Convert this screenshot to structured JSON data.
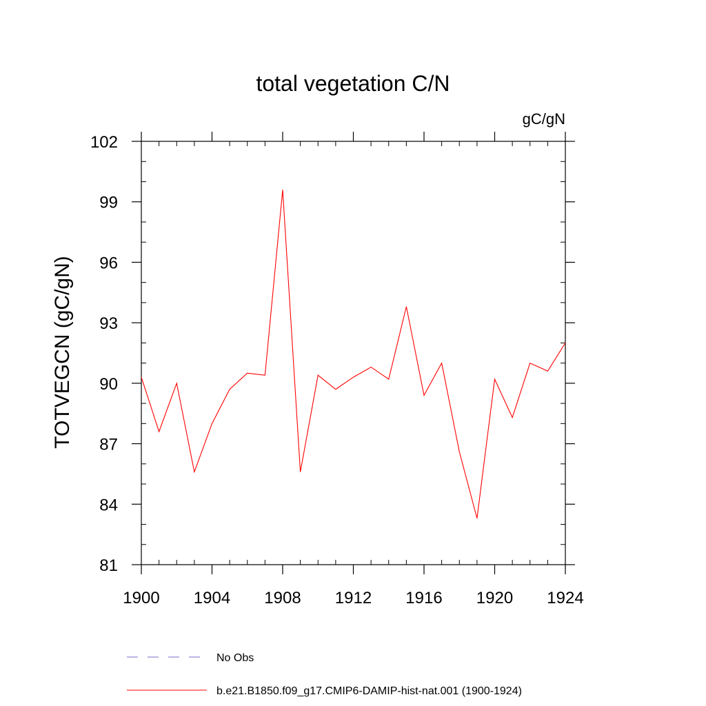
{
  "chart_data": {
    "type": "line",
    "title": "total vegetation C/N",
    "units_label": "gC/gN",
    "ylabel": "TOTVEGCN  (gC/gN)",
    "xlabel": "",
    "xlim": [
      1900,
      1924
    ],
    "ylim": [
      81,
      102
    ],
    "x_ticks": [
      1900,
      1904,
      1908,
      1912,
      1916,
      1920,
      1924
    ],
    "y_ticks": [
      81,
      84,
      87,
      90,
      93,
      96,
      99,
      102
    ],
    "x_minor_step": 1,
    "y_minor_step": 1,
    "grid": false,
    "legend_position": "bottom",
    "series": [
      {
        "name": "b.e21.B1850.f09_g17.CMIP6-DAMIP-hist-nat.001 (1900-1924)",
        "color": "#ff0000",
        "style": "solid",
        "x": [
          1900,
          1901,
          1902,
          1903,
          1904,
          1905,
          1906,
          1907,
          1908,
          1909,
          1910,
          1911,
          1912,
          1913,
          1914,
          1915,
          1916,
          1917,
          1918,
          1919,
          1920,
          1921,
          1922,
          1923,
          1924
        ],
        "values": [
          90.3,
          87.6,
          90.0,
          85.6,
          88.0,
          89.7,
          90.5,
          90.4,
          99.6,
          85.6,
          90.4,
          89.7,
          90.3,
          90.8,
          90.2,
          93.8,
          89.4,
          91.0,
          86.6,
          83.3,
          90.2,
          88.3,
          91.0,
          90.6,
          92.0
        ]
      }
    ],
    "legend": [
      {
        "label": "No Obs",
        "color": "#7b68c9",
        "style": "dashed"
      },
      {
        "label": "b.e21.B1850.f09_g17.CMIP6-DAMIP-hist-nat.001 (1900-1924)",
        "color": "#ff0000",
        "style": "solid"
      }
    ]
  }
}
